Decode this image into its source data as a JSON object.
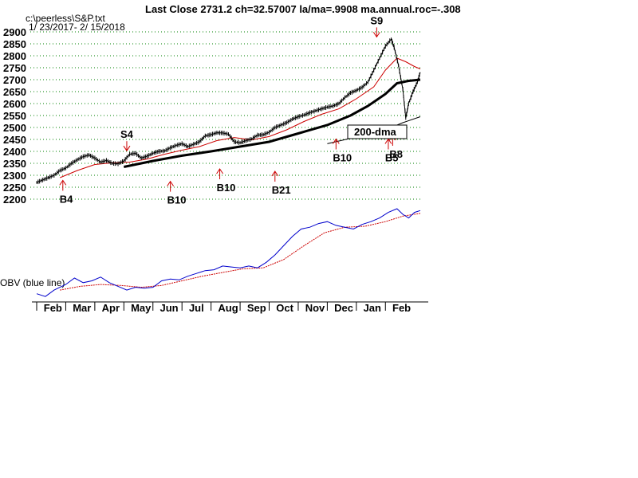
{
  "chart_data": {
    "type": "line",
    "header": "Last Close 2731.2 ch=32.57007  la/ma=.9908 ma.annual.roc=-.308",
    "file_label": "c:\\peerless\\S&P.txt",
    "date_range": "1/ 23/2017- 2/ 15/2018",
    "y_ticks": [
      "2900",
      "2850",
      "2800",
      "2750",
      "2700",
      "2650",
      "2600",
      "2550",
      "2500",
      "2450",
      "2400",
      "2350",
      "2300",
      "2250",
      "2200"
    ],
    "ylim": [
      2200,
      2900
    ],
    "x_months": [
      "Feb",
      "Mar",
      "Apr",
      "May",
      "Jun",
      "Jul",
      "Aug",
      "Sep",
      "Oct",
      "Nov",
      "Dec",
      "Jan",
      "Feb"
    ],
    "obv_label": "OBV (blue line)",
    "ma_box_label": "200-dma",
    "last_close": 2731.2,
    "colors": {
      "price": "#000000",
      "ma21": "#cc0000",
      "ma200": "#000000",
      "obv": "#0000cc",
      "obv_ma": "#cc0000",
      "signal": "#cc0000",
      "grid": "#008000"
    },
    "signals": [
      {
        "label": "B4",
        "kind": "buy",
        "month": 0.9,
        "price": 2282
      },
      {
        "label": "S4",
        "kind": "sell",
        "month": 3.1,
        "price": 2396
      },
      {
        "label": "B10",
        "kind": "buy",
        "month": 4.6,
        "price": 2278
      },
      {
        "label": "B10",
        "kind": "buy",
        "month": 6.3,
        "price": 2330
      },
      {
        "label": "B21",
        "kind": "buy",
        "month": 8.2,
        "price": 2320
      },
      {
        "label": "B10",
        "kind": "buy",
        "month": 10.3,
        "price": 2455
      },
      {
        "label": "S9",
        "kind": "sell",
        "month": 11.7,
        "price": 2872
      },
      {
        "label": "B5",
        "kind": "buy",
        "month": 12.1,
        "price": 2455
      },
      {
        "label": "B8",
        "kind": "buy",
        "month": 12.25,
        "price": 2470
      }
    ],
    "price_series": [
      [
        0,
        2270
      ],
      [
        0.2,
        2280
      ],
      [
        0.4,
        2290
      ],
      [
        0.6,
        2300
      ],
      [
        0.8,
        2320
      ],
      [
        1.0,
        2330
      ],
      [
        1.2,
        2350
      ],
      [
        1.4,
        2365
      ],
      [
        1.6,
        2378
      ],
      [
        1.8,
        2385
      ],
      [
        2.0,
        2372
      ],
      [
        2.2,
        2355
      ],
      [
        2.4,
        2362
      ],
      [
        2.6,
        2350
      ],
      [
        2.8,
        2348
      ],
      [
        3.0,
        2360
      ],
      [
        3.2,
        2388
      ],
      [
        3.4,
        2392
      ],
      [
        3.6,
        2372
      ],
      [
        3.8,
        2380
      ],
      [
        4.0,
        2392
      ],
      [
        4.2,
        2400
      ],
      [
        4.4,
        2402
      ],
      [
        4.6,
        2415
      ],
      [
        4.8,
        2425
      ],
      [
        5.0,
        2432
      ],
      [
        5.2,
        2420
      ],
      [
        5.4,
        2430
      ],
      [
        5.6,
        2440
      ],
      [
        5.8,
        2465
      ],
      [
        6.0,
        2470
      ],
      [
        6.2,
        2478
      ],
      [
        6.4,
        2477
      ],
      [
        6.6,
        2472
      ],
      [
        6.8,
        2440
      ],
      [
        7.0,
        2436
      ],
      [
        7.2,
        2445
      ],
      [
        7.4,
        2452
      ],
      [
        7.6,
        2468
      ],
      [
        7.8,
        2470
      ],
      [
        8.0,
        2480
      ],
      [
        8.2,
        2500
      ],
      [
        8.4,
        2510
      ],
      [
        8.6,
        2520
      ],
      [
        8.8,
        2535
      ],
      [
        9.0,
        2545
      ],
      [
        9.2,
        2552
      ],
      [
        9.4,
        2562
      ],
      [
        9.6,
        2570
      ],
      [
        9.8,
        2578
      ],
      [
        10.0,
        2585
      ],
      [
        10.2,
        2590
      ],
      [
        10.4,
        2600
      ],
      [
        10.6,
        2625
      ],
      [
        10.8,
        2645
      ],
      [
        11.0,
        2655
      ],
      [
        11.2,
        2668
      ],
      [
        11.4,
        2690
      ],
      [
        11.6,
        2740
      ],
      [
        11.8,
        2790
      ],
      [
        12.0,
        2840
      ],
      [
        12.2,
        2870
      ],
      [
        12.3,
        2835
      ],
      [
        12.45,
        2760
      ],
      [
        12.6,
        2660
      ],
      [
        12.7,
        2540
      ],
      [
        12.8,
        2600
      ],
      [
        12.95,
        2650
      ],
      [
        13.1,
        2690
      ],
      [
        13.2,
        2731
      ]
    ],
    "ma21_series": [
      [
        0.8,
        2290
      ],
      [
        1.4,
        2320
      ],
      [
        2.0,
        2345
      ],
      [
        2.6,
        2352
      ],
      [
        3.2,
        2355
      ],
      [
        3.8,
        2368
      ],
      [
        4.4,
        2388
      ],
      [
        5.0,
        2405
      ],
      [
        5.6,
        2420
      ],
      [
        6.2,
        2445
      ],
      [
        6.8,
        2458
      ],
      [
        7.4,
        2448
      ],
      [
        8.0,
        2462
      ],
      [
        8.6,
        2490
      ],
      [
        9.2,
        2525
      ],
      [
        9.8,
        2555
      ],
      [
        10.4,
        2578
      ],
      [
        11.0,
        2620
      ],
      [
        11.6,
        2670
      ],
      [
        12.0,
        2740
      ],
      [
        12.4,
        2790
      ],
      [
        12.7,
        2775
      ],
      [
        13.0,
        2755
      ],
      [
        13.2,
        2745
      ]
    ],
    "ma200_series": [
      [
        3.0,
        2335
      ],
      [
        4.0,
        2360
      ],
      [
        5.0,
        2382
      ],
      [
        6.0,
        2400
      ],
      [
        7.0,
        2420
      ],
      [
        8.0,
        2440
      ],
      [
        9.0,
        2475
      ],
      [
        10.0,
        2510
      ],
      [
        10.8,
        2550
      ],
      [
        11.4,
        2590
      ],
      [
        12.0,
        2640
      ],
      [
        12.4,
        2685
      ],
      [
        12.8,
        2695
      ],
      [
        13.2,
        2700
      ]
    ],
    "lower_band": [
      [
        10.0,
        2432
      ],
      [
        11.0,
        2460
      ],
      [
        12.0,
        2490
      ],
      [
        12.6,
        2520
      ],
      [
        13.2,
        2545
      ]
    ],
    "obv_series": [
      [
        0,
        0.08
      ],
      [
        0.3,
        0.05
      ],
      [
        0.6,
        0.12
      ],
      [
        1.0,
        0.18
      ],
      [
        1.3,
        0.25
      ],
      [
        1.6,
        0.2
      ],
      [
        1.9,
        0.22
      ],
      [
        2.2,
        0.26
      ],
      [
        2.5,
        0.2
      ],
      [
        2.8,
        0.16
      ],
      [
        3.1,
        0.12
      ],
      [
        3.4,
        0.15
      ],
      [
        3.7,
        0.14
      ],
      [
        4.0,
        0.15
      ],
      [
        4.3,
        0.22
      ],
      [
        4.6,
        0.24
      ],
      [
        4.9,
        0.23
      ],
      [
        5.2,
        0.27
      ],
      [
        5.5,
        0.3
      ],
      [
        5.8,
        0.33
      ],
      [
        6.1,
        0.34
      ],
      [
        6.4,
        0.38
      ],
      [
        6.7,
        0.37
      ],
      [
        7.0,
        0.36
      ],
      [
        7.3,
        0.38
      ],
      [
        7.6,
        0.36
      ],
      [
        7.9,
        0.42
      ],
      [
        8.2,
        0.5
      ],
      [
        8.5,
        0.6
      ],
      [
        8.8,
        0.7
      ],
      [
        9.1,
        0.78
      ],
      [
        9.4,
        0.8
      ],
      [
        9.7,
        0.84
      ],
      [
        10.0,
        0.86
      ],
      [
        10.3,
        0.82
      ],
      [
        10.6,
        0.8
      ],
      [
        10.9,
        0.78
      ],
      [
        11.2,
        0.83
      ],
      [
        11.5,
        0.86
      ],
      [
        11.8,
        0.9
      ],
      [
        12.1,
        0.96
      ],
      [
        12.4,
        1.0
      ],
      [
        12.6,
        0.94
      ],
      [
        12.8,
        0.9
      ],
      [
        13.0,
        0.96
      ],
      [
        13.2,
        0.98
      ]
    ],
    "obv_ma_series": [
      [
        0.8,
        0.12
      ],
      [
        1.5,
        0.16
      ],
      [
        2.2,
        0.18
      ],
      [
        2.9,
        0.17
      ],
      [
        3.6,
        0.15
      ],
      [
        4.3,
        0.17
      ],
      [
        5.0,
        0.22
      ],
      [
        5.7,
        0.27
      ],
      [
        6.4,
        0.31
      ],
      [
        7.1,
        0.35
      ],
      [
        7.8,
        0.36
      ],
      [
        8.5,
        0.45
      ],
      [
        9.2,
        0.6
      ],
      [
        9.9,
        0.74
      ],
      [
        10.6,
        0.8
      ],
      [
        11.3,
        0.81
      ],
      [
        12.0,
        0.86
      ],
      [
        12.6,
        0.92
      ],
      [
        13.2,
        0.95
      ]
    ]
  }
}
